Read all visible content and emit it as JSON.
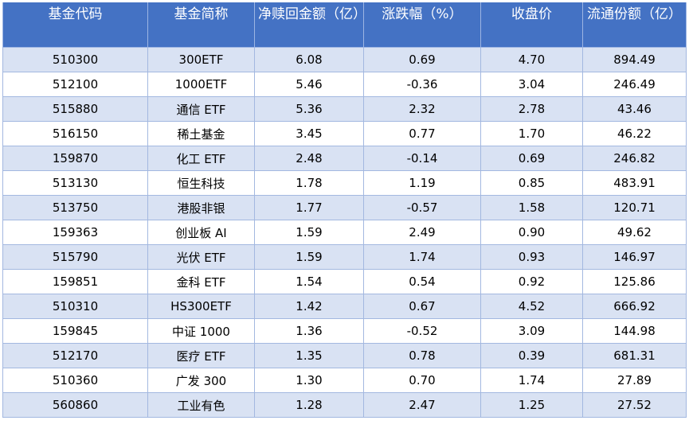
{
  "table": {
    "headers": [
      "基金代码",
      "基金简称",
      "净赎回金额（亿）",
      "涨跌幅（%）",
      "收盘价",
      "流通份额（亿）"
    ],
    "rows": [
      [
        "510300",
        "300ETF",
        "6.08",
        "0.69",
        "4.70",
        "894.49"
      ],
      [
        "512100",
        "1000ETF",
        "5.46",
        "-0.36",
        "3.04",
        "246.49"
      ],
      [
        "515880",
        "通信 ETF",
        "5.36",
        "2.32",
        "2.78",
        "43.46"
      ],
      [
        "516150",
        "稀土基金",
        "3.45",
        "0.77",
        "1.70",
        "46.22"
      ],
      [
        "159870",
        "化工 ETF",
        "2.48",
        "-0.14",
        "0.69",
        "246.82"
      ],
      [
        "513130",
        "恒生科技",
        "1.78",
        "1.19",
        "0.85",
        "483.91"
      ],
      [
        "513750",
        "港股非银",
        "1.77",
        "-0.57",
        "1.58",
        "120.71"
      ],
      [
        "159363",
        "创业板 AI",
        "1.59",
        "2.49",
        "0.90",
        "49.62"
      ],
      [
        "515790",
        "光伏 ETF",
        "1.59",
        "1.74",
        "0.93",
        "146.97"
      ],
      [
        "159851",
        "金科 ETF",
        "1.54",
        "0.54",
        "0.92",
        "125.86"
      ],
      [
        "510310",
        "HS300ETF",
        "1.42",
        "0.67",
        "4.52",
        "666.92"
      ],
      [
        "159845",
        "中证 1000",
        "1.36",
        "-0.52",
        "3.09",
        "144.98"
      ],
      [
        "512170",
        "医疗 ETF",
        "1.35",
        "0.78",
        "0.39",
        "681.31"
      ],
      [
        "510360",
        "广发 300",
        "1.30",
        "0.70",
        "1.74",
        "27.89"
      ],
      [
        "560860",
        "工业有色",
        "1.28",
        "2.47",
        "1.25",
        "27.52"
      ]
    ]
  },
  "colors": {
    "header_bg": "#4472c4",
    "header_text": "#ffffff",
    "band_row": "#d9e2f3",
    "plain_row": "#ffffff",
    "grid_line": "#a3b8e0"
  }
}
